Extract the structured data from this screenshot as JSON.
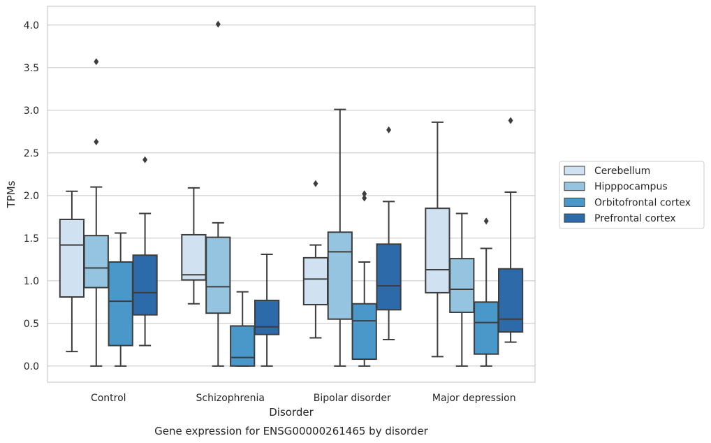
{
  "chart_data": {
    "type": "box",
    "caption": "Gene expression for ENSG00000261465 by disorder",
    "xlabel": "Disorder",
    "ylabel": "TPMs",
    "ylim": [
      -0.19,
      4.22
    ],
    "yticks": [
      "0.0",
      "0.5",
      "1.0",
      "1.5",
      "2.0",
      "2.5",
      "3.0",
      "3.5",
      "4.0"
    ],
    "grid": true,
    "legend_position": "right",
    "categories": [
      "Control",
      "Schizophrenia",
      "Bipolar disorder",
      "Major depression"
    ],
    "series": [
      {
        "name": "Cerebellum",
        "color": "#d0e1f2",
        "boxes": [
          {
            "whislo": 0.17,
            "q1": 0.81,
            "med": 1.42,
            "q3": 1.72,
            "whishi": 2.05,
            "fliers": []
          },
          {
            "whislo": 0.73,
            "q1": 1.01,
            "med": 1.07,
            "q3": 1.54,
            "whishi": 2.09,
            "fliers": []
          },
          {
            "whislo": 0.33,
            "q1": 0.72,
            "med": 1.02,
            "q3": 1.27,
            "whishi": 1.42,
            "fliers": [
              2.14
            ]
          },
          {
            "whislo": 0.11,
            "q1": 0.86,
            "med": 1.13,
            "q3": 1.85,
            "whishi": 2.86,
            "fliers": []
          }
        ]
      },
      {
        "name": "Hipppocampus",
        "color": "#94c4df",
        "boxes": [
          {
            "whislo": 0.0,
            "q1": 0.92,
            "med": 1.15,
            "q3": 1.53,
            "whishi": 2.1,
            "fliers": [
              2.63,
              3.57
            ]
          },
          {
            "whislo": 0.0,
            "q1": 0.62,
            "med": 0.93,
            "q3": 1.51,
            "whishi": 1.68,
            "fliers": [
              4.01
            ]
          },
          {
            "whislo": 0.0,
            "q1": 0.55,
            "med": 1.34,
            "q3": 1.57,
            "whishi": 3.01,
            "fliers": []
          },
          {
            "whislo": 0.0,
            "q1": 0.63,
            "med": 0.9,
            "q3": 1.26,
            "whishi": 1.79,
            "fliers": []
          }
        ]
      },
      {
        "name": "Orbitofrontal cortex",
        "color": "#4a98c9",
        "boxes": [
          {
            "whislo": 0.0,
            "q1": 0.24,
            "med": 0.76,
            "q3": 1.22,
            "whishi": 1.56,
            "fliers": []
          },
          {
            "whislo": 0.0,
            "q1": 0.0,
            "med": 0.1,
            "q3": 0.47,
            "whishi": 0.87,
            "fliers": []
          },
          {
            "whislo": 0.0,
            "q1": 0.08,
            "med": 0.53,
            "q3": 0.73,
            "whishi": 1.22,
            "fliers": [
              1.97,
              2.02
            ]
          },
          {
            "whislo": 0.0,
            "q1": 0.14,
            "med": 0.51,
            "q3": 0.75,
            "whishi": 1.38,
            "fliers": [
              1.7
            ]
          }
        ]
      },
      {
        "name": "Prefrontal cortex",
        "color": "#2d6aaa",
        "boxes": [
          {
            "whislo": 0.24,
            "q1": 0.6,
            "med": 0.86,
            "q3": 1.3,
            "whishi": 1.79,
            "fliers": [
              2.42
            ]
          },
          {
            "whislo": 0.0,
            "q1": 0.37,
            "med": 0.46,
            "q3": 0.77,
            "whishi": 1.31,
            "fliers": []
          },
          {
            "whislo": 0.31,
            "q1": 0.66,
            "med": 0.94,
            "q3": 1.43,
            "whishi": 1.93,
            "fliers": [
              2.77
            ]
          },
          {
            "whislo": 0.28,
            "q1": 0.4,
            "med": 0.55,
            "q3": 1.14,
            "whishi": 2.04,
            "fliers": [
              2.88
            ]
          }
        ]
      }
    ]
  }
}
